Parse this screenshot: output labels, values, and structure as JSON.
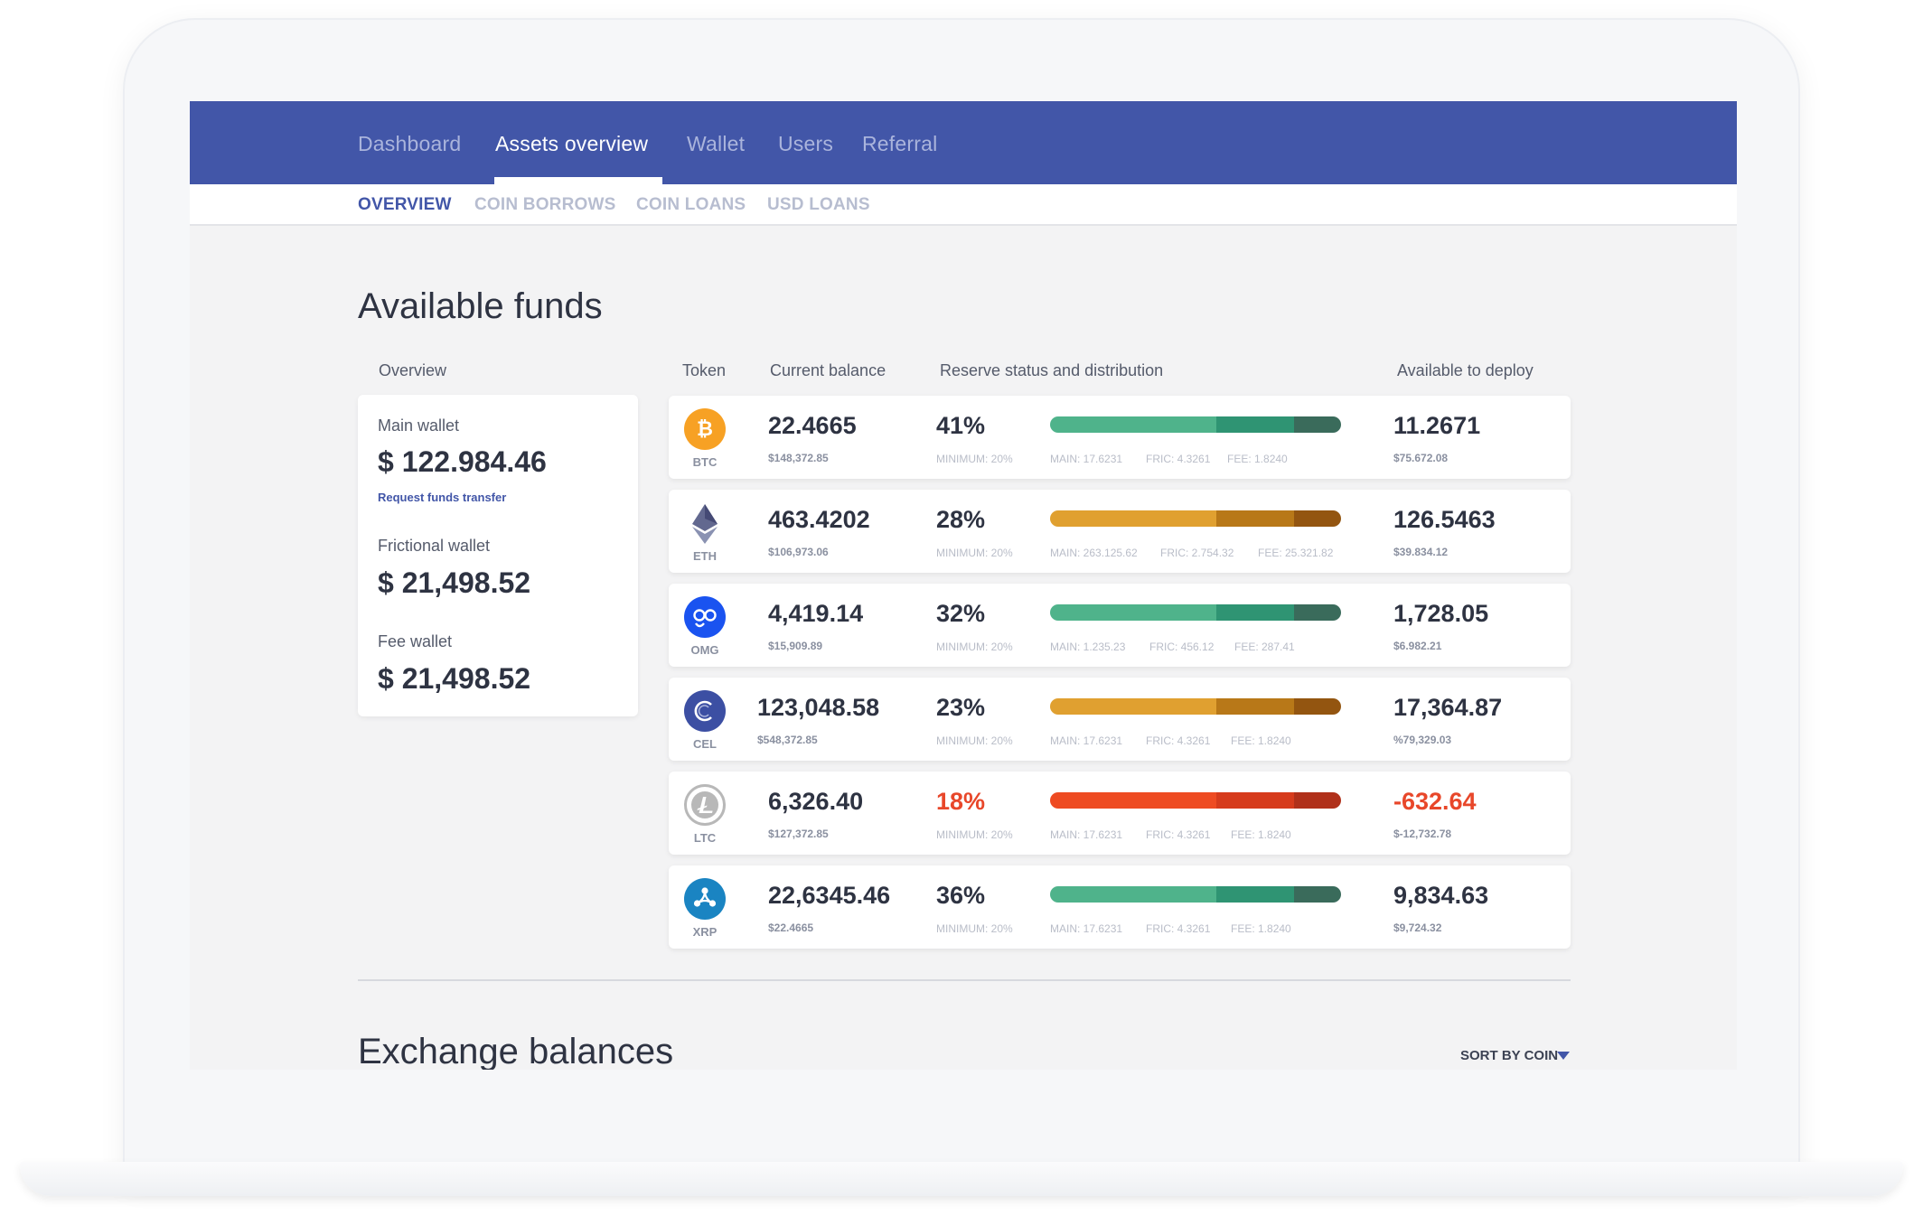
{
  "nav": {
    "tabs": [
      {
        "label": "Dashboard"
      },
      {
        "label": "Assets overview"
      },
      {
        "label": "Wallet"
      },
      {
        "label": "Users"
      },
      {
        "label": "Referral"
      }
    ],
    "active_tab": "Assets overview"
  },
  "subnav": {
    "items": [
      {
        "label": "OVERVIEW"
      },
      {
        "label": "COIN BORROWS"
      },
      {
        "label": "COIN LOANS"
      },
      {
        "label": "USD LOANS"
      }
    ],
    "active": "OVERVIEW"
  },
  "available_funds": {
    "title": "Available funds",
    "columns": {
      "overview": "Overview",
      "token": "Token",
      "current_balance": "Current balance",
      "reserve": "Reserve status and distribution",
      "available": "Available to deploy"
    }
  },
  "overview": {
    "main_wallet_label": "Main wallet",
    "main_wallet_value": "$ 122.984.46",
    "request_link": "Request funds transfer",
    "frictional_label": "Frictional wallet",
    "frictional_value": "$ 21,498.52",
    "fee_label": "Fee wallet",
    "fee_value": "$ 21,498.52"
  },
  "tokens": [
    {
      "symbol": "BTC",
      "icon": "bitcoin-icon",
      "balance": "22.4665",
      "balance_usd": "$148,372.85",
      "reserve_pct": "41%",
      "minimum": "MINIMUM: 20%",
      "main": "MAIN: 17.6231",
      "fric": "FRIC: 4.3261",
      "fee": "FEE: 1.8240",
      "available": "11.2671",
      "available_usd": "$75.672.08",
      "status": "ok"
    },
    {
      "symbol": "ETH",
      "icon": "ethereum-icon",
      "balance": "463.4202",
      "balance_usd": "$106,973.06",
      "reserve_pct": "28%",
      "minimum": "MINIMUM: 20%",
      "main": "MAIN: 263.125.62",
      "fric": "FRIC: 2.754.32",
      "fee": "FEE: 25.321.82",
      "available": "126.5463",
      "available_usd": "$39.834.12",
      "status": "warn"
    },
    {
      "symbol": "OMG",
      "icon": "omisego-icon",
      "balance": "4,419.14",
      "balance_usd": "$15,909.89",
      "reserve_pct": "32%",
      "minimum": "MINIMUM: 20%",
      "main": "MAIN: 1.235.23",
      "fric": "FRIC: 456.12",
      "fee": "FEE: 287.41",
      "available": "1,728.05",
      "available_usd": "$6.982.21",
      "status": "ok"
    },
    {
      "symbol": "CEL",
      "icon": "celsius-icon",
      "balance": "123,048.58",
      "balance_usd": "$548,372.85",
      "reserve_pct": "23%",
      "minimum": "MINIMUM: 20%",
      "main": "MAIN: 17.6231",
      "fric": "FRIC: 4.3261",
      "fee": "FEE: 1.8240",
      "available": "17,364.87",
      "available_usd": "%79,329.03",
      "status": "warn"
    },
    {
      "symbol": "LTC",
      "icon": "litecoin-icon",
      "balance": "6,326.40",
      "balance_usd": "$127,372.85",
      "reserve_pct": "18%",
      "minimum": "MINIMUM: 20%",
      "main": "MAIN: 17.6231",
      "fric": "FRIC: 4.3261",
      "fee": "FEE: 1.8240",
      "available": "-632.64",
      "available_usd": "$-12,732.78",
      "status": "danger"
    },
    {
      "symbol": "XRP",
      "icon": "ripple-icon",
      "balance": "22,6345.46",
      "balance_usd": "$22.4665",
      "reserve_pct": "36%",
      "minimum": "MINIMUM: 20%",
      "main": "MAIN: 17.6231",
      "fric": "FRIC: 4.3261",
      "fee": "FEE: 1.8240",
      "available": "9,834.63",
      "available_usd": "$9,724.32",
      "status": "ok"
    }
  ],
  "colors": {
    "primary": "#4256a8",
    "ok": [
      "#4fb38b",
      "#2f9473",
      "#3a6b5b"
    ],
    "warn": [
      "#e0a030",
      "#b87818",
      "#935510"
    ],
    "danger": [
      "#ee4b22",
      "#d63b1c",
      "#b0301a"
    ]
  },
  "exchange": {
    "title": "Exchange balances",
    "sort_label": "SORT BY COIN"
  }
}
